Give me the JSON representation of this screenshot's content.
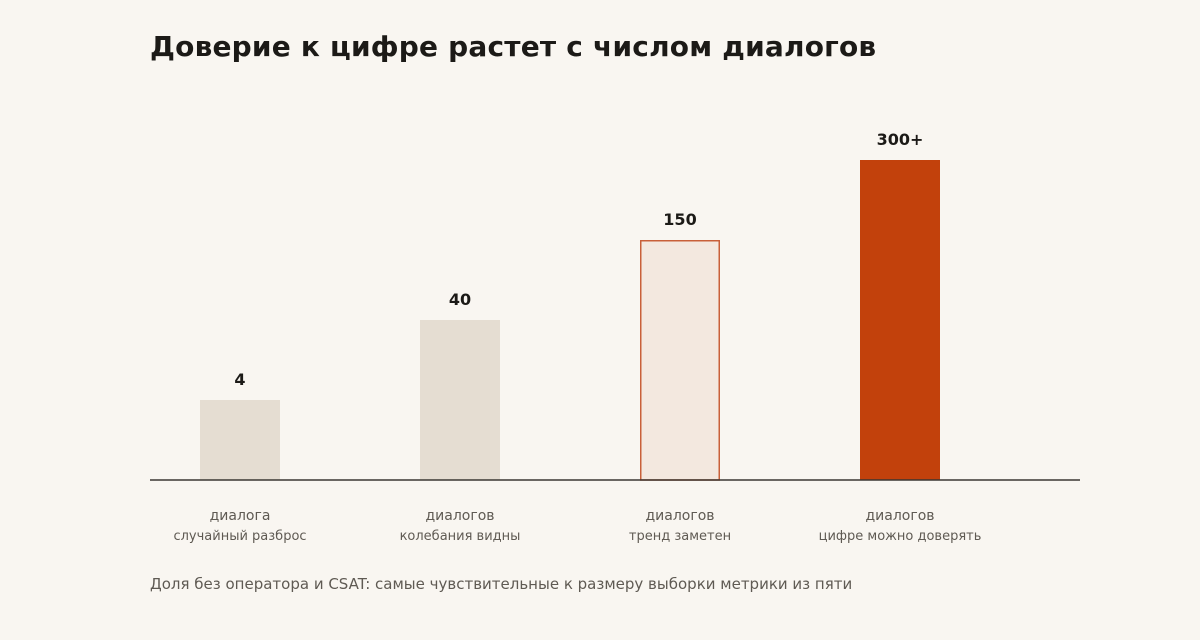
{
  "title": "Доверие к цифре растет с числом диалогов",
  "note": "Доля без оператора и CSAT: самые чувствительные к размеру выборки метрики из пяти",
  "colors": {
    "background": "#f9f6f1",
    "muted_bar": "#e5ddd2",
    "highlight_fill": "#f3e8df",
    "highlight_stroke": "#c8603a",
    "accent": "#c2410c",
    "axis": "#3a3632",
    "text_dark": "#1c1a17",
    "text_muted": "#5f5a53"
  },
  "chart_data": {
    "type": "bar",
    "categories": [
      "4",
      "40",
      "150",
      "300+"
    ],
    "values": [
      1,
      2,
      3,
      4
    ],
    "value_labels": [
      "4",
      "40",
      "150",
      "300+"
    ],
    "category_units": [
      "диалога",
      "диалогов",
      "диалогов",
      "диалогов"
    ],
    "category_notes": [
      "случайный разброс",
      "колебания видны",
      "тренд заметен",
      "цифре можно доверять"
    ],
    "bar_styles": [
      "muted",
      "muted",
      "outlined",
      "accent"
    ],
    "ylim": [
      0,
      4.25
    ],
    "grid": false
  }
}
